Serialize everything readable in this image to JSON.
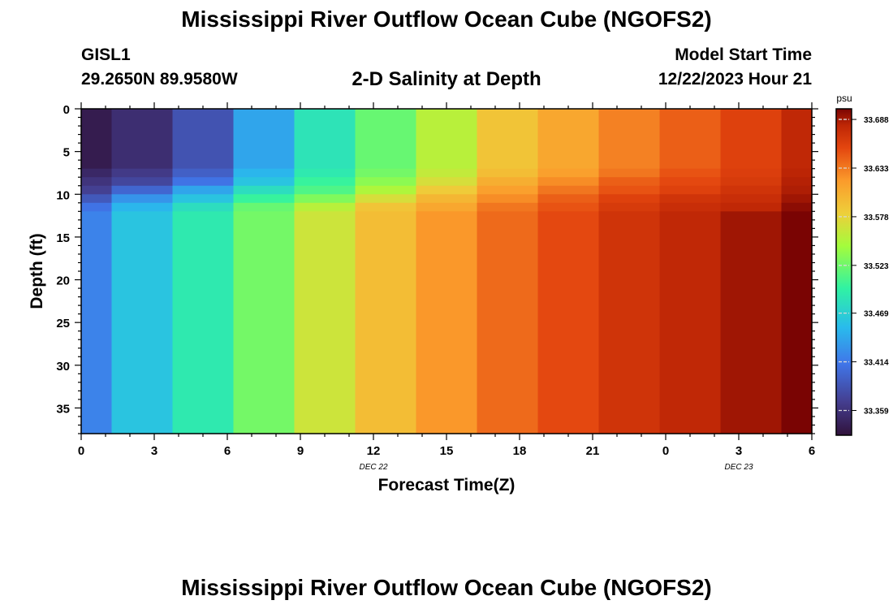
{
  "header": {
    "title": "Mississippi River Outflow Ocean Cube (NGOFS2)",
    "station_id": "GISL1",
    "station_coords": "29.2650N  89.9580W",
    "subtitle": "2-D Salinity at Depth",
    "model_start_label": "Model Start Time",
    "model_start_value": "12/22/2023 Hour 21"
  },
  "footer": {
    "title": "Mississippi River Outflow Ocean Cube (NGOFS2)"
  },
  "chart_data": {
    "type": "heatmap",
    "xlabel": "Forecast Time(Z)",
    "ylabel": "Depth (ft)",
    "x_tick_labels": [
      "0",
      "3",
      "6",
      "9",
      "12",
      "15",
      "18",
      "21",
      "0",
      "3",
      "6"
    ],
    "x_date_labels": [
      {
        "after_tick": 4,
        "label": "DEC 22"
      },
      {
        "after_tick": 9,
        "label": "DEC 23"
      }
    ],
    "y_tick_labels": [
      "0",
      "5",
      "10",
      "15",
      "20",
      "25",
      "30",
      "35"
    ],
    "ylim": [
      0,
      38
    ],
    "y_reversed": true,
    "colorbar": {
      "unit": "psu",
      "ticks": [
        "33.688",
        "33.633",
        "33.578",
        "33.523",
        "33.469",
        "33.414",
        "33.359"
      ],
      "min": 33.331,
      "max": 33.7
    },
    "time_columns": [
      {
        "start": 0,
        "end": 1.25
      },
      {
        "start": 1.25,
        "end": 3.75
      },
      {
        "start": 3.75,
        "end": 6.25
      },
      {
        "start": 6.25,
        "end": 8.75
      },
      {
        "start": 8.75,
        "end": 11.25
      },
      {
        "start": 11.25,
        "end": 13.75
      },
      {
        "start": 13.75,
        "end": 16.25
      },
      {
        "start": 16.25,
        "end": 18.75
      },
      {
        "start": 18.75,
        "end": 21.25
      },
      {
        "start": 21.25,
        "end": 23.75
      },
      {
        "start": 23.75,
        "end": 26.25
      },
      {
        "start": 26.25,
        "end": 28.75
      },
      {
        "start": 28.75,
        "end": 30
      }
    ],
    "depth_bands": [
      {
        "top": 0,
        "bottom": 7
      },
      {
        "top": 7,
        "bottom": 8
      },
      {
        "top": 8,
        "bottom": 9
      },
      {
        "top": 9,
        "bottom": 10
      },
      {
        "top": 10,
        "bottom": 11
      },
      {
        "top": 11,
        "bottom": 12
      },
      {
        "top": 12,
        "bottom": 38
      }
    ],
    "salinity": [
      [
        33.34,
        33.35,
        33.36,
        33.37,
        33.39,
        33.41,
        33.42
      ],
      [
        33.355,
        33.365,
        33.375,
        33.4,
        33.43,
        33.45,
        33.46
      ],
      [
        33.385,
        33.395,
        33.41,
        33.44,
        33.46,
        33.48,
        33.49
      ],
      [
        33.44,
        33.45,
        33.46,
        33.48,
        33.5,
        33.52,
        33.525
      ],
      [
        33.485,
        33.49,
        33.5,
        33.51,
        33.53,
        33.555,
        33.565
      ],
      [
        33.52,
        33.525,
        33.535,
        33.55,
        33.57,
        33.59,
        33.595
      ],
      [
        33.555,
        33.56,
        33.57,
        33.585,
        33.6,
        33.61,
        33.62
      ],
      [
        33.59,
        33.595,
        33.605,
        33.615,
        33.625,
        33.635,
        33.64
      ],
      [
        33.61,
        33.615,
        33.625,
        33.635,
        33.645,
        33.65,
        33.655
      ],
      [
        33.63,
        33.635,
        33.645,
        33.65,
        33.66,
        33.665,
        33.67
      ],
      [
        33.645,
        33.65,
        33.655,
        33.66,
        33.67,
        33.675,
        33.68
      ],
      [
        33.66,
        33.662,
        33.665,
        33.67,
        33.675,
        33.68,
        33.69
      ],
      [
        33.68,
        33.682,
        33.684,
        33.686,
        33.69,
        33.695,
        33.7
      ]
    ]
  }
}
